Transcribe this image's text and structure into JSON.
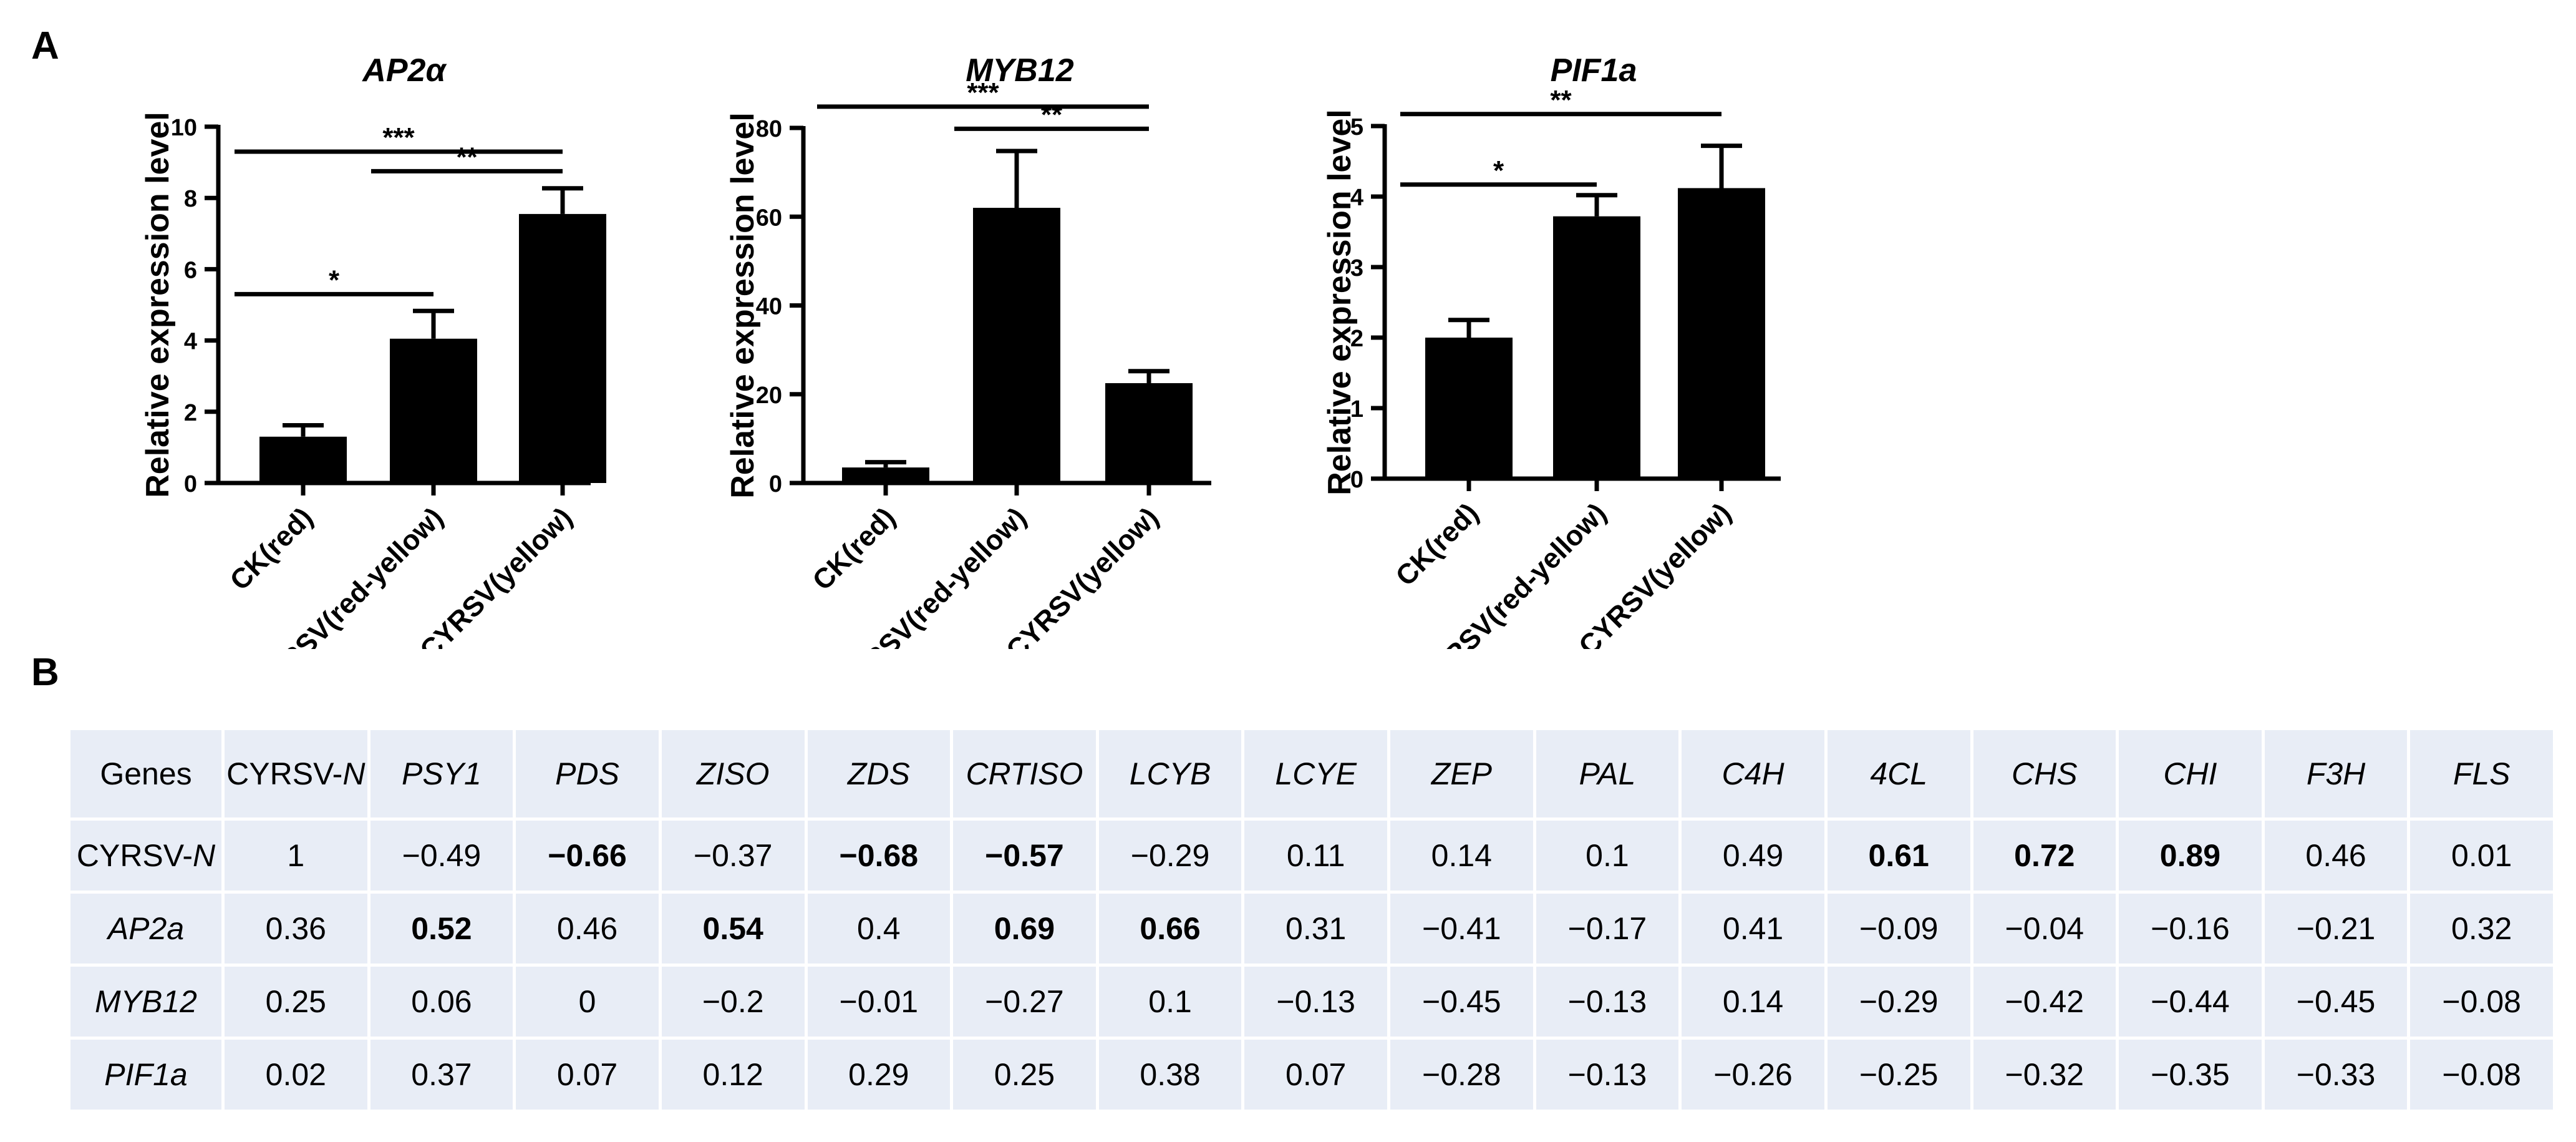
{
  "panel_labels": {
    "a": "A",
    "b": "B"
  },
  "chart_data": [
    {
      "type": "bar",
      "title": "AP2α",
      "xlabel": "",
      "ylabel": "Relative expression level",
      "categories": [
        "CK(red)",
        "CYRSV(red-yellow)",
        "CYRSV(yellow)"
      ],
      "values": [
        1.3,
        4.05,
        7.55
      ],
      "errors": [
        0.32,
        0.78,
        0.72
      ],
      "ylim": [
        0,
        10
      ],
      "yticks": [
        0,
        2,
        4,
        6,
        8,
        10
      ],
      "significance": [
        {
          "from": 0,
          "to": 1,
          "label": "*",
          "y": 5.3
        },
        {
          "from": 1,
          "to": 2,
          "label": "**",
          "y": 8.75
        },
        {
          "from": 0,
          "to": 2,
          "label": "***",
          "y": 9.3
        }
      ]
    },
    {
      "type": "bar",
      "title": "MYB12",
      "xlabel": "",
      "ylabel": "Relative expression level",
      "categories": [
        "CK(red)",
        "CYRSV(red-yellow)",
        "CYRSV(yellow)"
      ],
      "values": [
        3.5,
        62,
        22.5
      ],
      "errors": [
        1.2,
        12.8,
        2.7
      ],
      "ylim": [
        0,
        80
      ],
      "yticks": [
        0,
        20,
        40,
        60,
        80
      ],
      "significance": [
        {
          "from": 1,
          "to": 2,
          "label": "**",
          "y": 79.8
        },
        {
          "from": 0,
          "to": 2,
          "label": "***",
          "y": 84.8
        }
      ]
    },
    {
      "type": "bar",
      "title": "PIF1a",
      "xlabel": "",
      "ylabel": "Relative expression level",
      "categories": [
        "CK(red)",
        "CYRSV(red-yellow)",
        "CYRSV(yellow)"
      ],
      "values": [
        2.0,
        3.72,
        4.12
      ],
      "errors": [
        0.25,
        0.3,
        0.6
      ],
      "ylim": [
        0,
        5
      ],
      "yticks": [
        0,
        1,
        2,
        3,
        4,
        5
      ],
      "significance": [
        {
          "from": 0,
          "to": 1,
          "label": "*",
          "y": 4.17
        },
        {
          "from": 0,
          "to": 2,
          "label": "**",
          "y": 5.17
        }
      ]
    }
  ],
  "table": {
    "header": [
      {
        "text": "Genes",
        "italic": false
      },
      {
        "text": "CYRSV-",
        "suffix": "N",
        "italic": false
      },
      {
        "text": "PSY1",
        "italic": true
      },
      {
        "text": "PDS",
        "italic": true
      },
      {
        "text": "ZISO",
        "italic": true
      },
      {
        "text": "ZDS",
        "italic": true
      },
      {
        "text": "CRTISO",
        "italic": true
      },
      {
        "text": "LCYB",
        "italic": true
      },
      {
        "text": "LCYE",
        "italic": true
      },
      {
        "text": "ZEP",
        "italic": true
      },
      {
        "text": "PAL",
        "italic": true
      },
      {
        "text": "C4H",
        "italic": true
      },
      {
        "text": "4CL",
        "italic": true
      },
      {
        "text": "CHS",
        "italic": true
      },
      {
        "text": "CHI",
        "italic": true
      },
      {
        "text": "F3H",
        "italic": true
      },
      {
        "text": "FLS",
        "italic": true
      }
    ],
    "rows": [
      {
        "label": "CYRSV-",
        "label_suffix": "N",
        "label_italic": false,
        "values": [
          "1",
          "−0.49",
          "−0.66",
          "−0.37",
          "−0.68",
          "−0.57",
          "−0.29",
          "0.11",
          "0.14",
          "0.1",
          "0.49",
          "0.61",
          "0.72",
          "0.89",
          "0.46",
          "0.01"
        ],
        "bold": [
          false,
          false,
          true,
          false,
          true,
          true,
          false,
          false,
          false,
          false,
          false,
          true,
          true,
          true,
          false,
          false
        ]
      },
      {
        "label": "AP2a",
        "label_suffix": "",
        "label_italic": true,
        "values": [
          "0.36",
          "0.52",
          "0.46",
          "0.54",
          "0.4",
          "0.69",
          "0.66",
          "0.31",
          "−0.41",
          "−0.17",
          "0.41",
          "−0.09",
          "−0.04",
          "−0.16",
          "−0.21",
          "0.32"
        ],
        "bold": [
          false,
          true,
          false,
          true,
          false,
          true,
          true,
          false,
          false,
          false,
          false,
          false,
          false,
          false,
          false,
          false
        ]
      },
      {
        "label": "MYB12",
        "label_suffix": "",
        "label_italic": true,
        "values": [
          "0.25",
          "0.06",
          "0",
          "−0.2",
          "−0.01",
          "−0.27",
          "0.1",
          "−0.13",
          "−0.45",
          "−0.13",
          "0.14",
          "−0.29",
          "−0.42",
          "−0.44",
          "−0.45",
          "−0.08"
        ],
        "bold": [
          false,
          false,
          false,
          false,
          false,
          false,
          false,
          false,
          false,
          false,
          false,
          false,
          false,
          false,
          false,
          false
        ]
      },
      {
        "label": "PIF1a",
        "label_suffix": "",
        "label_italic": true,
        "values": [
          "0.02",
          "0.37",
          "0.07",
          "0.12",
          "0.29",
          "0.25",
          "0.38",
          "0.07",
          "−0.28",
          "−0.13",
          "−0.26",
          "−0.25",
          "−0.32",
          "−0.35",
          "−0.33",
          "−0.08"
        ],
        "bold": [
          false,
          false,
          false,
          false,
          false,
          false,
          false,
          false,
          false,
          false,
          false,
          false,
          false,
          false,
          false,
          false
        ]
      }
    ]
  }
}
